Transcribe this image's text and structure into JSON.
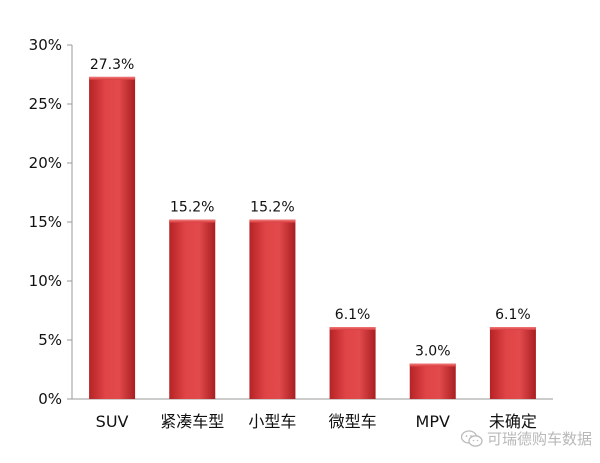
{
  "chart_data": {
    "type": "bar",
    "categories": [
      "SUV",
      "紧凑车型",
      "小型车",
      "微型车",
      "MPV",
      "未确定"
    ],
    "values": [
      27.3,
      15.2,
      15.2,
      6.1,
      3.0,
      6.1
    ],
    "data_labels": [
      "27.3%",
      "15.2%",
      "15.2%",
      "6.1%",
      "3.0%",
      "6.1%"
    ],
    "y_ticks": [
      "0%",
      "5%",
      "10%",
      "15%",
      "20%",
      "25%",
      "30%"
    ],
    "ylim": [
      0,
      30
    ],
    "bar_color": "#d83a3c",
    "grid": false,
    "legend": "none"
  },
  "watermark": {
    "text": "可瑞德购车数据",
    "icon": "wechat-icon"
  }
}
